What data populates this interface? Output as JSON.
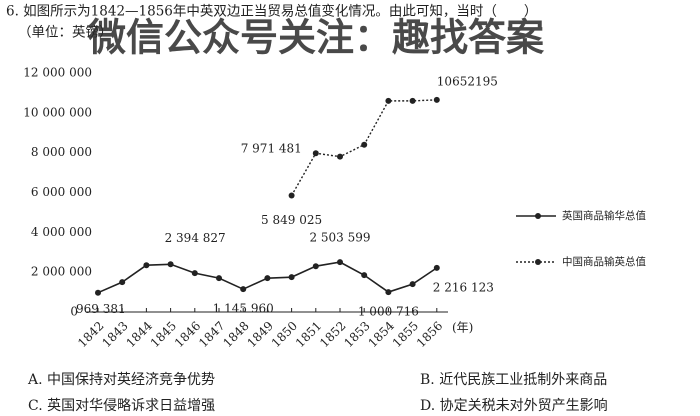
{
  "question": {
    "stem": "6. 如图所示为1842—1856年中英双边正当贸易总值变化情况。由此可知，当时（　　）",
    "unit": "（单位：英镑）"
  },
  "watermark": "微信公众号关注：趣找答案",
  "chart_data": {
    "type": "line",
    "x_unit": "(年)",
    "categories": [
      "1842",
      "1843",
      "1844",
      "1845",
      "1846",
      "1847",
      "1848",
      "1849",
      "1850",
      "1851",
      "1852",
      "1853",
      "1854",
      "1855",
      "1856"
    ],
    "series": [
      {
        "name": "英国商品输华总值",
        "color": "#222222",
        "style": "solid",
        "values": [
          969381,
          1500000,
          2350000,
          2394827,
          1950000,
          1700000,
          1145960,
          1700000,
          1750000,
          2300000,
          2503599,
          1850000,
          1000716,
          1400000,
          2216123
        ],
        "value_labels": [
          "969 381",
          null,
          null,
          "2 394 827",
          null,
          null,
          "1 145 960",
          null,
          null,
          null,
          "2 503 599",
          null,
          "1 000 716",
          null,
          "2 216 123"
        ]
      },
      {
        "name": "中国商品输英总值",
        "color": "#222222",
        "style": "dotted",
        "values": [
          null,
          null,
          null,
          null,
          null,
          null,
          null,
          null,
          5849025,
          7971481,
          7800000,
          8400000,
          10600000,
          10600000,
          10652195
        ],
        "value_labels": [
          null,
          null,
          null,
          null,
          null,
          null,
          null,
          null,
          "5 849 025",
          "7 971 481",
          null,
          null,
          null,
          null,
          "10652195"
        ]
      }
    ],
    "ylim": [
      0,
      12000000
    ],
    "yticks": [
      0,
      {
        "value": 2000000,
        "label": "2 000 000"
      },
      {
        "value": 4000000,
        "label": "4 000 000"
      },
      {
        "value": 6000000,
        "label": "6 000 000"
      },
      {
        "value": 8000000,
        "label": "8 000 000"
      },
      {
        "value": 10000000,
        "label": "10 000 000"
      },
      {
        "value": 12000000,
        "label": "12 000 000"
      }
    ]
  },
  "options": [
    "A. 中国保持对英经济竞争优势",
    "B. 近代民族工业抵制外来商品",
    "C. 英国对华侵略诉求日益增强",
    "D. 协定关税未对外贸产生影响"
  ]
}
